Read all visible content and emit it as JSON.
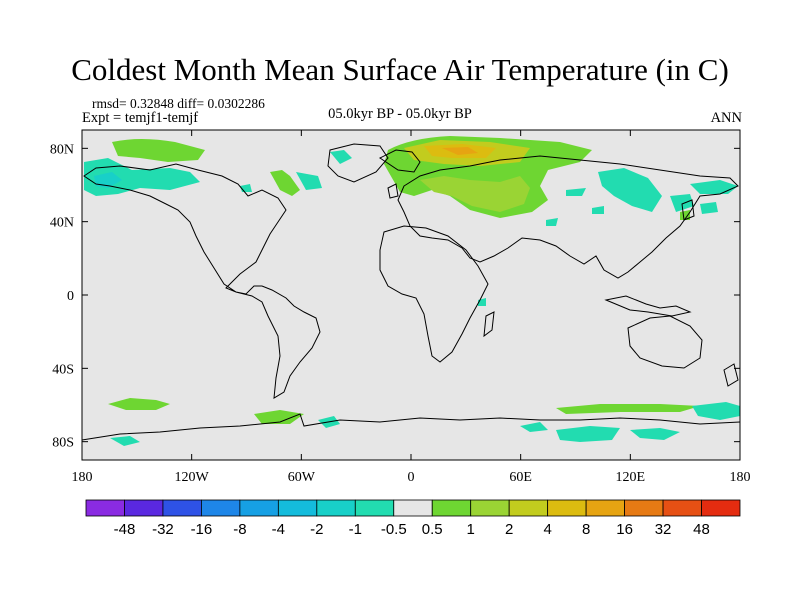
{
  "title": "Coldest Month Mean Surface Air Temperature (in C)",
  "stats": "rmsd= 0.32848  diff= 0.0302286",
  "experiment": "Expt = temjf1-temjf",
  "period": "05.0kyr BP - 05.0kyr BP",
  "season": "ANN",
  "axes": {
    "x_ticks": [
      "180",
      "120W",
      "60W",
      "0",
      "60E",
      "120E",
      "180"
    ],
    "y_ticks": [
      "80N",
      "40N",
      "0",
      "40S",
      "80S"
    ]
  },
  "colorbar": {
    "labels": [
      "-48",
      "-32",
      "-16",
      "-8",
      "-4",
      "-2",
      "-1",
      "-0.5",
      "0.5",
      "1",
      "2",
      "4",
      "8",
      "16",
      "32",
      "48"
    ],
    "colors": [
      "#8a2be2",
      "#5a28e0",
      "#2e52e6",
      "#1e86e8",
      "#16a0e4",
      "#14bcdc",
      "#18d0c8",
      "#22dcb0",
      "#e6e6e6",
      "#6ed632",
      "#9ad434",
      "#c2cc1e",
      "#dcbc10",
      "#e6a412",
      "#e67a14",
      "#e65014",
      "#e42c10"
    ]
  },
  "colors": {
    "background": "#e6e6e6",
    "coast": "#000000"
  }
}
